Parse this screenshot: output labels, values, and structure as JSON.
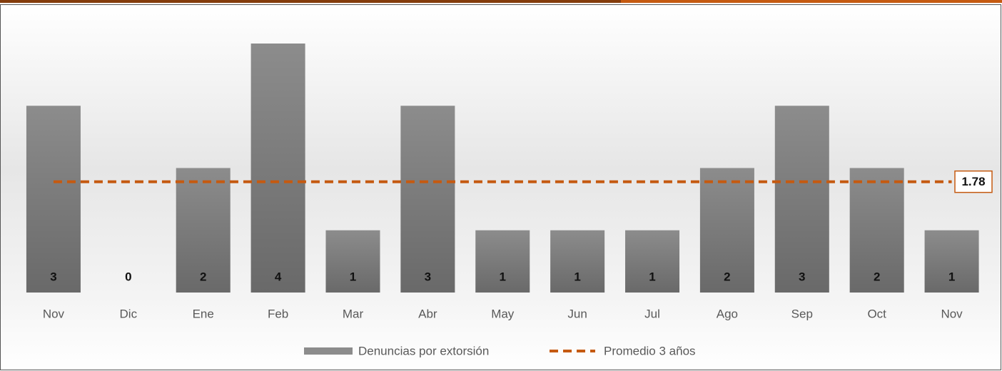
{
  "chart_data": {
    "type": "bar",
    "categories": [
      "Nov",
      "Dic",
      "Ene",
      "Feb",
      "Mar",
      "Abr",
      "May",
      "Jun",
      "Jul",
      "Ago",
      "Sep",
      "Oct",
      "Nov"
    ],
    "series": [
      {
        "name": "Denuncias por extorsión",
        "color": "#8c8c8c",
        "values": [
          3,
          0,
          2,
          4,
          1,
          3,
          1,
          1,
          1,
          2,
          3,
          2,
          1
        ]
      }
    ],
    "average": {
      "name": "Promedio 3 años",
      "color": "#c55a11",
      "value": 1.78
    },
    "ylim": [
      0,
      4
    ]
  }
}
